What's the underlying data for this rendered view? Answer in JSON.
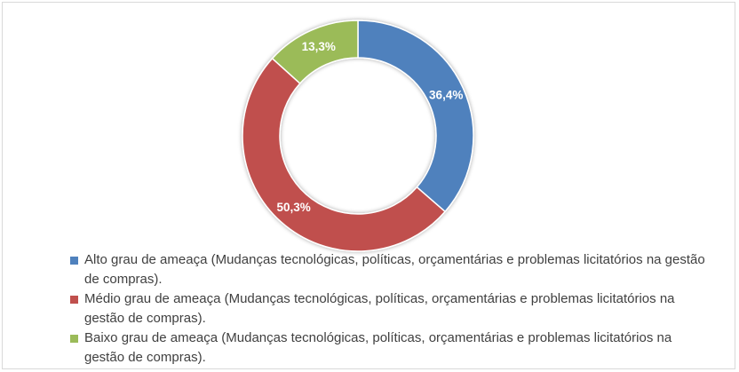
{
  "chart_data": {
    "type": "pie",
    "donut": true,
    "title": "",
    "legend_position": "bottom",
    "categories": [
      "Alto grau de ameaça (Mudanças tecnológicas, políticas, orçamentárias e problemas licitatórios na gestão de compras).",
      "Médio grau de ameaça (Mudanças tecnológicas, políticas, orçamentárias e problemas licitatórios na gestão de compras).",
      "Baixo grau de ameaça (Mudanças tecnológicas, políticas, orçamentárias e problemas licitatórios na gestão de compras)."
    ],
    "values": [
      36.4,
      50.3,
      13.3
    ],
    "data_labels": [
      "36,4%",
      "50,3%",
      "13,3%"
    ],
    "colors": [
      "#4f81bd",
      "#c0504d",
      "#9bbb59"
    ]
  }
}
